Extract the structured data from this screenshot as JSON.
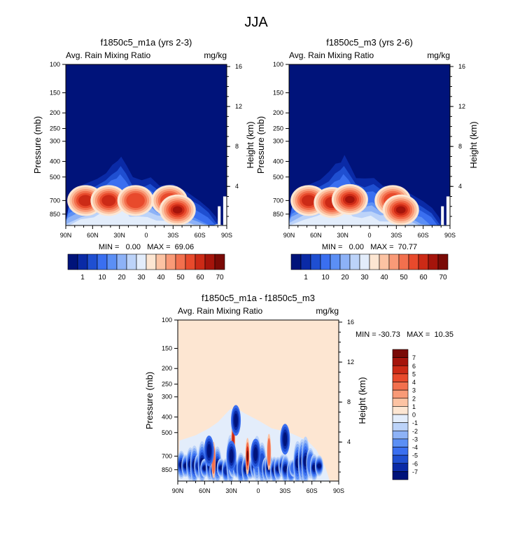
{
  "figure_title": "JJA",
  "colors": {
    "background": "#ffffff",
    "field_fill_max": "#8b0000",
    "field_fill_min": "#00137a",
    "diff_background": "#fde6d2"
  },
  "chart_data": [
    {
      "type": "heatmap",
      "title": "f1850c5_m1a (yrs 2-3)",
      "left_string": "Avg. Rain Mixing Ratio",
      "right_string": "mg/kg",
      "xlabel": "",
      "ylabel": "Pressure (mb)",
      "ylabel_right": "Height (km)",
      "x_ticks": [
        "90N",
        "60N",
        "30N",
        "0",
        "30S",
        "60S",
        "90S"
      ],
      "y_ticks": [
        "100",
        "150",
        "200",
        "250",
        "300",
        "400",
        "500",
        "700",
        "850"
      ],
      "y_tick_values": [
        100,
        150,
        200,
        250,
        300,
        400,
        500,
        700,
        850
      ],
      "right_ticks": [
        "16",
        "12",
        "8",
        "4"
      ],
      "right_tick_values": [
        16,
        12,
        8,
        4
      ],
      "xlim": [
        90,
        -90
      ],
      "ylim_mb": [
        100,
        1000
      ],
      "stats": "MIN =   0.00   MAX =  69.06",
      "colorbar": {
        "labels": [
          "1",
          "10",
          "20",
          "30",
          "40",
          "50",
          "60",
          "70"
        ],
        "colors": [
          "#00137a",
          "#0a2aa6",
          "#1f4fd1",
          "#3a6ff0",
          "#5b8ff5",
          "#8db2f7",
          "#bcd3f9",
          "#e3edfb",
          "#fde6d2",
          "#fcc3a3",
          "#f99a77",
          "#f2704e",
          "#e84a2c",
          "#cc2a16",
          "#a5140b",
          "#7a0a06"
        ]
      },
      "features": [
        {
          "lat": 68,
          "p": 700,
          "value": 55
        },
        {
          "lat": 42,
          "p": 700,
          "value": 60
        },
        {
          "lat": 12,
          "p": 700,
          "value": 45
        },
        {
          "lat": -26,
          "p": 700,
          "value": 50
        },
        {
          "lat": -35,
          "p": 800,
          "value": 69.06
        }
      ]
    },
    {
      "type": "heatmap",
      "title": "f1850c5_m3 (yrs 2-6)",
      "left_string": "Avg. Rain Mixing Ratio",
      "right_string": "mg/kg",
      "xlabel": "",
      "ylabel": "Pressure (mb)",
      "ylabel_right": "Height (km)",
      "x_ticks": [
        "90N",
        "60N",
        "30N",
        "0",
        "30S",
        "60S",
        "90S"
      ],
      "y_ticks": [
        "100",
        "150",
        "200",
        "250",
        "300",
        "400",
        "500",
        "700",
        "850"
      ],
      "y_tick_values": [
        100,
        150,
        200,
        250,
        300,
        400,
        500,
        700,
        850
      ],
      "right_ticks": [
        "16",
        "12",
        "8",
        "4"
      ],
      "right_tick_values": [
        16,
        12,
        8,
        4
      ],
      "xlim": [
        90,
        -90
      ],
      "ylim_mb": [
        100,
        1000
      ],
      "stats": "MIN =   0.00   MAX =  70.77",
      "colorbar": {
        "labels": [
          "1",
          "10",
          "20",
          "30",
          "40",
          "50",
          "60",
          "70"
        ],
        "colors": [
          "#00137a",
          "#0a2aa6",
          "#1f4fd1",
          "#3a6ff0",
          "#5b8ff5",
          "#8db2f7",
          "#bcd3f9",
          "#e3edfb",
          "#fde6d2",
          "#fcc3a3",
          "#f99a77",
          "#f2704e",
          "#e84a2c",
          "#cc2a16",
          "#a5140b",
          "#7a0a06"
        ]
      },
      "features": [
        {
          "lat": 68,
          "p": 700,
          "value": 55
        },
        {
          "lat": 42,
          "p": 720,
          "value": 62
        },
        {
          "lat": 22,
          "p": 690,
          "value": 65
        },
        {
          "lat": -26,
          "p": 700,
          "value": 48
        },
        {
          "lat": -35,
          "p": 800,
          "value": 70.77
        }
      ]
    },
    {
      "type": "heatmap",
      "title": "f1850c5_m1a - f1850c5_m3",
      "left_string": "Avg. Rain Mixing Ratio",
      "right_string": "mg/kg",
      "xlabel": "",
      "ylabel": "Pressure (mb)",
      "ylabel_right": "Height (km)",
      "x_ticks": [
        "90N",
        "60N",
        "30N",
        "0",
        "30S",
        "60S",
        "90S"
      ],
      "y_ticks": [
        "100",
        "150",
        "200",
        "250",
        "300",
        "400",
        "500",
        "700",
        "850"
      ],
      "y_tick_values": [
        100,
        150,
        200,
        250,
        300,
        400,
        500,
        700,
        850
      ],
      "right_ticks": [
        "16",
        "12",
        "8",
        "4"
      ],
      "right_tick_values": [
        16,
        12,
        8,
        4
      ],
      "xlim": [
        90,
        -90
      ],
      "ylim_mb": [
        100,
        1000
      ],
      "stats": "MIN = -30.73   MAX =  10.35",
      "colorbar": {
        "labels": [
          "7",
          "6",
          "5",
          "4",
          "3",
          "2",
          "1",
          "0",
          "-1",
          "-2",
          "-3",
          "-4",
          "-5",
          "-6",
          "-7"
        ],
        "colors": [
          "#7a0a06",
          "#a5140b",
          "#cc2a16",
          "#e84a2c",
          "#f2704e",
          "#f99a77",
          "#fcc3a3",
          "#fde6d2",
          "#e3edfb",
          "#bcd3f9",
          "#8db2f7",
          "#5b8ff5",
          "#3a6ff0",
          "#1f4fd1",
          "#0a2aa6",
          "#00137a"
        ]
      },
      "features": [
        {
          "lat": 55,
          "p": 650,
          "value": -25
        },
        {
          "lat": 30,
          "p": 700,
          "value": -30.73
        },
        {
          "lat": 25,
          "p": 420,
          "value": -20
        },
        {
          "lat": 3,
          "p": 680,
          "value": -25
        },
        {
          "lat": -30,
          "p": 550,
          "value": -28
        },
        {
          "lat": 12,
          "p": 700,
          "value": 10.35
        }
      ]
    }
  ]
}
